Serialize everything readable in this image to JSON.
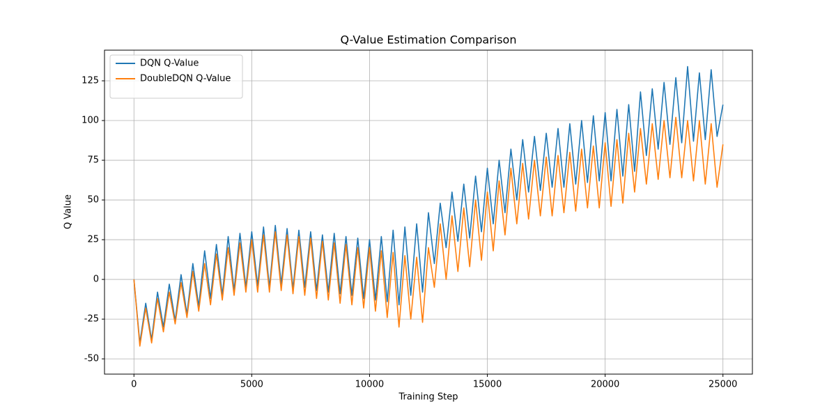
{
  "chart_data": {
    "type": "line",
    "title": "Q-Value Estimation Comparison",
    "x_label": "Training Step",
    "y_label": "Q Value",
    "x": [
      0,
      250,
      500,
      750,
      1000,
      1250,
      1500,
      1750,
      2000,
      2250,
      2500,
      2750,
      3000,
      3250,
      3500,
      3750,
      4000,
      4250,
      4500,
      4750,
      5000,
      5250,
      5500,
      5750,
      6000,
      6250,
      6500,
      6750,
      7000,
      7250,
      7500,
      7750,
      8000,
      8250,
      8500,
      8750,
      9000,
      9250,
      9500,
      9750,
      10000,
      10250,
      10500,
      10750,
      11000,
      11250,
      11500,
      11750,
      12000,
      12250,
      12500,
      12750,
      13000,
      13250,
      13500,
      13750,
      14000,
      14250,
      14500,
      14750,
      15000,
      15250,
      15500,
      15750,
      16000,
      16250,
      16500,
      16750,
      17000,
      17250,
      17500,
      17750,
      18000,
      18250,
      18500,
      18750,
      19000,
      19250,
      19500,
      19750,
      20000,
      20250,
      20500,
      20750,
      21000,
      21250,
      21500,
      21750,
      22000,
      22250,
      22500,
      22750,
      23000,
      23250,
      23500,
      23750,
      24000,
      24250,
      24500,
      24750,
      25000
    ],
    "series": [
      {
        "name": "DQN Q-Value",
        "color": "#1f77b4",
        "values": [
          0,
          -40,
          -15,
          -38,
          -8,
          -30,
          -3,
          -26,
          3,
          -22,
          10,
          -17,
          18,
          -12,
          22,
          -10,
          27,
          -7,
          29,
          -5,
          30,
          -4,
          33,
          -5,
          34,
          -3,
          32,
          -6,
          31,
          -5,
          30,
          -7,
          28,
          -8,
          29,
          -9,
          27,
          -10,
          26,
          -12,
          25,
          -13,
          27,
          -14,
          31,
          -16,
          33,
          -10,
          35,
          -8,
          42,
          10,
          48,
          20,
          55,
          24,
          60,
          26,
          65,
          30,
          70,
          35,
          75,
          42,
          82,
          50,
          88,
          55,
          90,
          56,
          92,
          58,
          95,
          58,
          98,
          60,
          100,
          61,
          103,
          62,
          105,
          62,
          107,
          65,
          110,
          68,
          118,
          78,
          120,
          82,
          124,
          85,
          127,
          86,
          134,
          87,
          130,
          88,
          132,
          90,
          110
        ]
      },
      {
        "name": "DoubleDQN Q-Value",
        "color": "#ff7f0e",
        "values": [
          0,
          -42,
          -18,
          -40,
          -12,
          -33,
          -8,
          -28,
          -2,
          -24,
          5,
          -20,
          10,
          -16,
          16,
          -13,
          20,
          -10,
          23,
          -8,
          25,
          -8,
          28,
          -8,
          30,
          -7,
          28,
          -9,
          27,
          -10,
          26,
          -12,
          24,
          -13,
          23,
          -15,
          22,
          -16,
          20,
          -18,
          20,
          -20,
          18,
          -24,
          17,
          -30,
          15,
          -25,
          14,
          -27,
          20,
          -5,
          35,
          0,
          40,
          5,
          45,
          8,
          50,
          12,
          55,
          18,
          62,
          28,
          70,
          35,
          73,
          38,
          75,
          40,
          77,
          40,
          78,
          42,
          80,
          43,
          82,
          45,
          84,
          45,
          86,
          46,
          88,
          48,
          92,
          55,
          95,
          60,
          98,
          63,
          100,
          64,
          102,
          64,
          100,
          62,
          100,
          60,
          98,
          58,
          85
        ]
      }
    ],
    "xlim": [
      -1250,
      26250
    ],
    "xticks": [
      0,
      5000,
      10000,
      15000,
      20000,
      25000
    ],
    "ylim": [
      -59.6,
      144.3
    ],
    "yticks": [
      -50,
      -25,
      0,
      25,
      50,
      75,
      100,
      125
    ],
    "grid": true,
    "legend": "upper left"
  }
}
